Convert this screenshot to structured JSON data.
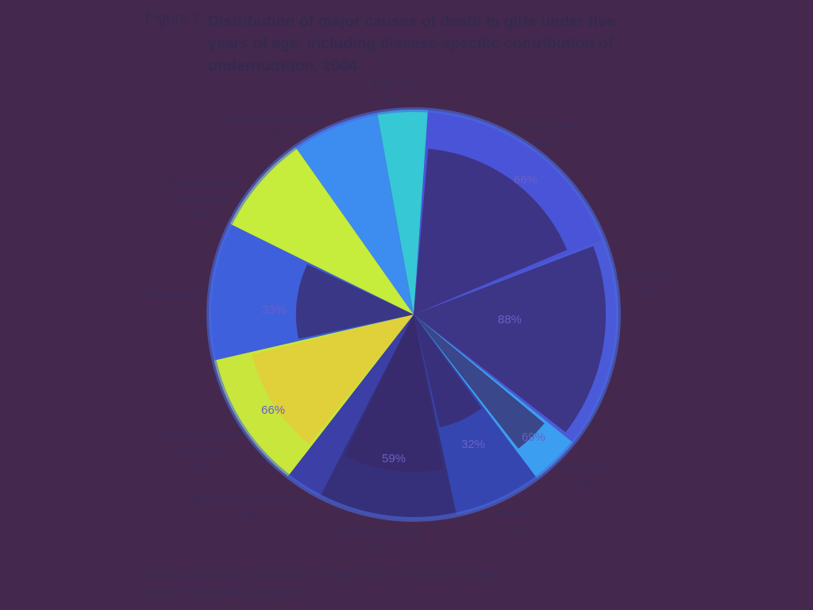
{
  "figure": {
    "label": "Figure 2",
    "title": "Distribution of major causes of death in girls under five years of age, including disease-specific contribution of undernutrition, 2004"
  },
  "footnotes": {
    "shaded_note": "Shaded area indicates contribution of undernutrition to each cause of death.",
    "source": "Source: World Health Organization."
  },
  "chart_data": {
    "type": "pie",
    "title": "Distribution of major causes of death in girls under five years of age, including disease-specific contribution of undernutrition, 2004",
    "slices": [
      {
        "lines": [
          "Pneumonia",
          "18%"
        ],
        "value": 18,
        "shaded": "66%",
        "color": "#4a54d8"
      },
      {
        "lines": [
          "Diarrhoea",
          "17%"
        ],
        "value": 17,
        "shaded": "88%",
        "color": "#4a5ad8"
      },
      {
        "lines": [
          "Measles",
          "4%"
        ],
        "value": 4,
        "shaded": "69%",
        "color": "#3c9ef0"
      },
      {
        "lines": [
          "Malaria",
          "7%"
        ],
        "value": 7,
        "shaded": "32%",
        "color": "#3546b0"
      },
      {
        "lines": [
          "Other infections",
          "11%"
        ],
        "value": 11,
        "shaded": "59%",
        "color": "#36307a"
      },
      {
        "lines": [
          "Nutritional deficiencies",
          "3%"
        ],
        "value": 3,
        "shaded": "",
        "color": "#3b3fa6"
      },
      {
        "lines": [
          "Severe neonatal",
          "infections",
          "11%"
        ],
        "value": 11,
        "shaded": "66%",
        "color": "#c8e63c"
      },
      {
        "lines": [
          "Prematurity",
          "11%"
        ],
        "value": 11,
        "shaded": "33%",
        "color": "#3f60dc"
      },
      {
        "lines": [
          "Birth asphyxia",
          "and trauma",
          "8%"
        ],
        "value": 8,
        "shaded": "",
        "color": "#c6ec3c"
      },
      {
        "lines": [
          "Noncommunicable",
          "7%"
        ],
        "value": 7,
        "shaded": "",
        "color": "#3d8cf0"
      },
      {
        "lines": [
          "Injuries",
          "4%"
        ],
        "value": 4,
        "shaded": "",
        "color": "#36c8d4"
      }
    ]
  }
}
